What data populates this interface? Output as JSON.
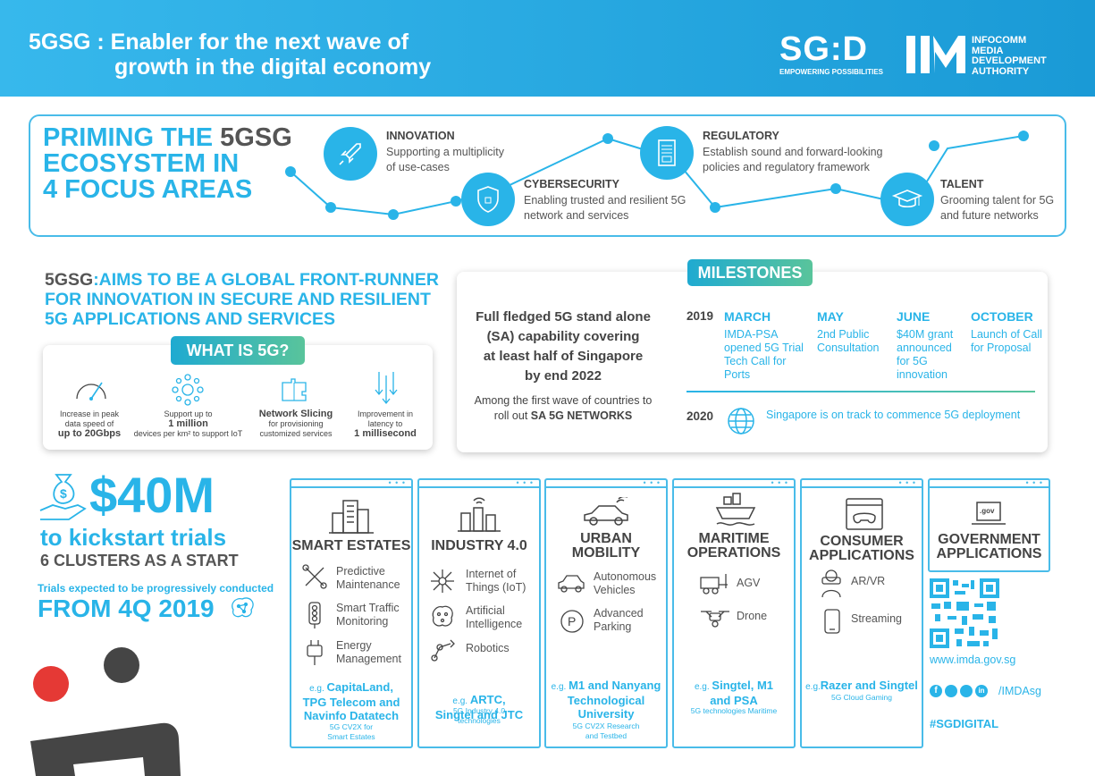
{
  "header": {
    "title_line1": "5GSG : Enabler for the next wave of",
    "title_line2": "growth in the digital economy",
    "sgd_logo": "SG:D",
    "sgd_tagline": "EMPOWERING POSSIBILITIES",
    "imda_lines": [
      "INFOCOMM",
      "MEDIA",
      "DEVELOPMENT",
      "AUTHORITY"
    ]
  },
  "focus": {
    "title_a": "PRIMING THE ",
    "title_b": "5GSG",
    "title_l2": "ECOSYSTEM IN",
    "title_l3": "4 FOCUS AREAS",
    "areas": [
      {
        "heading": "INNOVATION",
        "desc": [
          "Supporting a multiplicity",
          "of use-cases"
        ],
        "icon": "rocket-icon"
      },
      {
        "heading": "CYBERSECURITY",
        "desc": [
          "Enabling trusted and resilient 5G",
          "network and services"
        ],
        "icon": "shield-icon"
      },
      {
        "heading": "REGULATORY",
        "desc": [
          "Establish sound and forward-looking",
          "policies and regulatory framework"
        ],
        "icon": "document-icon"
      },
      {
        "heading": "TALENT",
        "desc": [
          "Grooming talent  for 5G",
          "and future networks"
        ],
        "icon": "graduation-cap-icon"
      }
    ]
  },
  "aims": {
    "prefix": "5GSG",
    "line1": ":AIMS TO BE A GLOBAL FRONT-RUNNER",
    "line2": "FOR INNOVATION IN SECURE AND RESILIENT",
    "line3": "5G APPLICATIONS AND SERVICES"
  },
  "what5g": {
    "label": "WHAT IS 5G?",
    "items": [
      {
        "l1": "Increase in peak",
        "l2": "data speed of",
        "bold": "up to 20Gbps",
        "icon": "speedometer-icon"
      },
      {
        "l1": "Support up to",
        "bold": "1 million",
        "l2": "devices per km² to support IoT",
        "icon": "network-icon"
      },
      {
        "bold": "Network Slicing",
        "l1": "for provisioning",
        "l2": "customized services",
        "icon": "puzzle-icon"
      },
      {
        "l1": "Improvement in",
        "l2": "latency to",
        "bold": "1 millisecond",
        "icon": "latency-arrows-icon"
      }
    ]
  },
  "milestones": {
    "label": "MILESTONES",
    "lead_lines": [
      "Full fledged 5G stand alone",
      "(SA) capability covering",
      "at least half of Singapore",
      "by end 2022"
    ],
    "sub_line1": "Among the first wave of countries to",
    "sub_line2_a": "roll out ",
    "sub_line2_b": "SA 5G NETWORKS",
    "year1": "2019",
    "months": [
      {
        "month": "MARCH",
        "lines": [
          "IMDA-PSA",
          "opened 5G Trial",
          "Tech Call for",
          "Ports"
        ]
      },
      {
        "month": "MAY",
        "lines": [
          "2nd Public",
          "Consultation"
        ]
      },
      {
        "month": "JUNE",
        "lines": [
          "$40M grant",
          "announced",
          "for 5G",
          "innovation"
        ]
      },
      {
        "month": "OCTOBER",
        "lines": [
          "Launch of Call",
          "for Proposal"
        ]
      }
    ],
    "year2": "2020",
    "year2_text": "Singapore is on track to commence 5G deployment"
  },
  "funding": {
    "amount": "$40M",
    "kickstart": "to kickstart trials",
    "clusters": "6 CLUSTERS AS A START",
    "trials_note": "Trials expected to be progressively conducted",
    "from": "FROM 4Q 2019"
  },
  "clusters": [
    {
      "title": [
        "SMART ESTATES"
      ],
      "items": [
        [
          "Predictive",
          "Maintenance"
        ],
        [
          "Smart Traffic",
          "Monitoring"
        ],
        [
          "Energy",
          "Management"
        ]
      ],
      "eg_prefix": "e.g. ",
      "eg": [
        "CapitaLand,",
        "TPG Telecom and",
        "Navinfo Datatech"
      ],
      "eg_sub": [
        "5G CV2X for",
        "Smart Estates"
      ]
    },
    {
      "title": [
        "INDUSTRY 4.0"
      ],
      "items": [
        [
          "Internet of",
          "Things (IoT)"
        ],
        [
          "Artificial",
          "Intelligence"
        ],
        [
          "Robotics"
        ]
      ],
      "eg_prefix": "e.g. ",
      "eg": [
        "ARTC,",
        "Singtel and JTC"
      ],
      "eg_sub": [
        "5G Industry 4.0",
        "technologies"
      ]
    },
    {
      "title": [
        "URBAN",
        "MOBILITY"
      ],
      "items": [
        [
          "Autonomous",
          "Vehicles"
        ],
        [
          "Advanced",
          "Parking"
        ]
      ],
      "eg_prefix": "e.g. ",
      "eg": [
        "M1 and Nanyang",
        "Technological",
        "University"
      ],
      "eg_sub": [
        "5G CV2X Research",
        "and Testbed"
      ]
    },
    {
      "title": [
        "MARITIME",
        "OPERATIONS"
      ],
      "items": [
        [
          "AGV"
        ],
        [
          "Drone"
        ]
      ],
      "eg_prefix": "e.g. ",
      "eg": [
        "Singtel, M1",
        "and PSA"
      ],
      "eg_sub": [
        "5G technologies Maritime"
      ]
    },
    {
      "title": [
        "CONSUMER",
        "APPLICATIONS"
      ],
      "items": [
        [
          "AR/VR"
        ],
        [
          "Streaming"
        ]
      ],
      "eg_prefix": "e.g.",
      "eg": [
        "Razer and Singtel"
      ],
      "eg_sub": [
        "5G Cloud Gaming"
      ]
    },
    {
      "title": [
        "GOVERNMENT",
        "APPLICATIONS"
      ],
      "items": [],
      "eg": [],
      "eg_sub": []
    }
  ],
  "gov_badge": ".gov",
  "footer": {
    "url": "www.imda.gov.sg",
    "social": "/IMDAsg",
    "hashtag": "#SGDIGITAL"
  },
  "colors": {
    "accent": "#29b4e8",
    "green": "#59c49b",
    "dark": "#444444"
  }
}
